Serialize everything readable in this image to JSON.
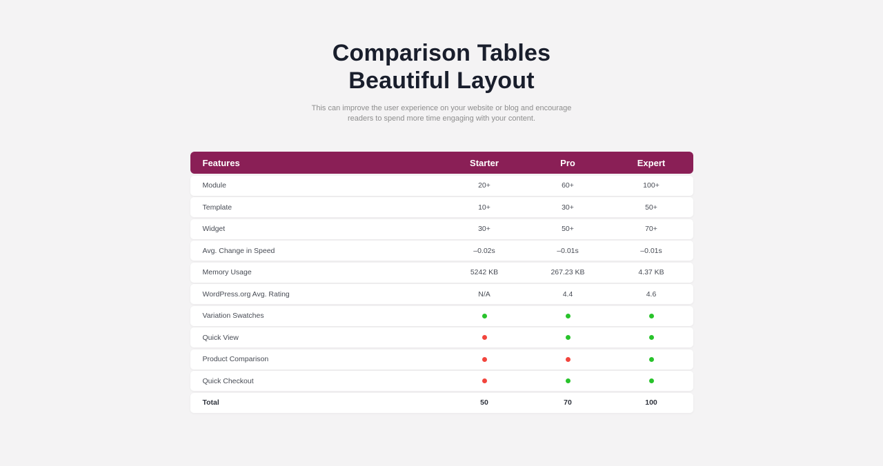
{
  "page": {
    "title_line1": "Comparison Tables",
    "title_line2": "Beautiful Layout",
    "subtitle": "This can improve the user experience on your website or blog and encourage readers to spend more time engaging with your content."
  },
  "colors": {
    "page_background": "#f4f3f4",
    "header_background": "#8a1f56",
    "header_text": "#ffffff",
    "title_text": "#191e2c",
    "dot_green": "#28c32b",
    "dot_red": "#f2453d"
  },
  "table": {
    "columns": [
      "Features",
      "Starter",
      "Pro",
      "Expert"
    ],
    "dot_colors": {
      "green": "#28c32b",
      "red": "#f2453d"
    },
    "rows": [
      {
        "feature": "Module",
        "values": [
          "20+",
          "60+",
          "100+"
        ]
      },
      {
        "feature": "Template",
        "values": [
          "10+",
          "30+",
          "50+"
        ]
      },
      {
        "feature": "Widget",
        "values": [
          "30+",
          "50+",
          "70+"
        ]
      },
      {
        "feature": "Avg. Change in Speed",
        "values": [
          "–0.02s",
          "–0.01s",
          "–0.01s"
        ]
      },
      {
        "feature": "Memory Usage",
        "values": [
          "5242 KB",
          "267.23 KB",
          "4.37 KB"
        ]
      },
      {
        "feature": "WordPress.org Avg. Rating",
        "values": [
          "N/A",
          "4.4",
          "4.6"
        ]
      },
      {
        "feature": "Variation Swatches",
        "values": [
          "dot:green",
          "dot:green",
          "dot:green"
        ]
      },
      {
        "feature": "Quick View",
        "values": [
          "dot:red",
          "dot:green",
          "dot:green"
        ]
      },
      {
        "feature": "Product Comparison",
        "values": [
          "dot:red",
          "dot:red",
          "dot:green"
        ]
      },
      {
        "feature": "Quick Checkout",
        "values": [
          "dot:red",
          "dot:green",
          "dot:green"
        ]
      },
      {
        "feature": "Total",
        "values": [
          "50",
          "70",
          "100"
        ],
        "bold": true
      }
    ]
  }
}
